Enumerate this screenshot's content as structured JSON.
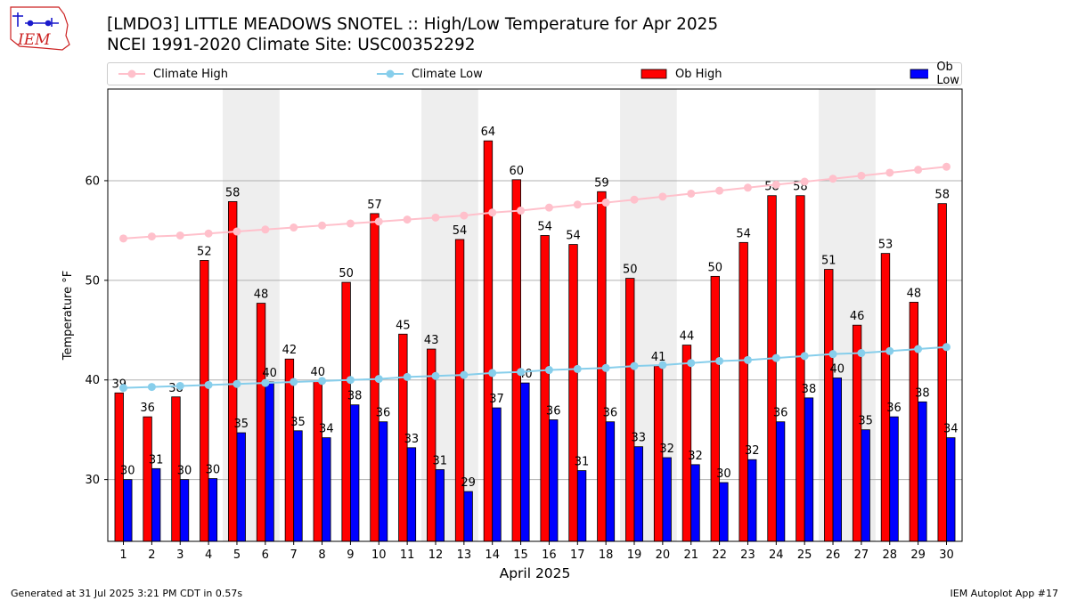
{
  "logo": {
    "text": "IEM",
    "color": "#cc2222"
  },
  "header": {
    "title": "[LMDO3] LITTLE MEADOWS SNOTEL :: High/Low Temperature for Apr 2025",
    "subtitle": "NCEI 1991-2020 Climate Site: USC00352292"
  },
  "footer": {
    "left": "Generated at 31 Jul 2025 3:21 PM CDT in 0.57s",
    "right": "IEM Autoplot App #17"
  },
  "legend": [
    {
      "label": "Climate High",
      "kind": "line",
      "color": "#ffc0cb"
    },
    {
      "label": "Climate Low",
      "kind": "line",
      "color": "#87ceeb"
    },
    {
      "label": "Ob High",
      "kind": "bar",
      "color": "#ff0000"
    },
    {
      "label": "Ob Low",
      "kind": "bar",
      "color": "#0000ff"
    }
  ],
  "chart_data": {
    "type": "bar",
    "xlabel": "April 2025",
    "ylabel": "Temperature °F",
    "ylim": [
      23.8,
      69.2
    ],
    "yticks": [
      30,
      40,
      50,
      60
    ],
    "grid": "horizontal",
    "legend_position": "top",
    "categories": [
      "1",
      "2",
      "3",
      "4",
      "5",
      "6",
      "7",
      "8",
      "9",
      "10",
      "11",
      "12",
      "13",
      "14",
      "15",
      "16",
      "17",
      "18",
      "19",
      "20",
      "21",
      "22",
      "23",
      "24",
      "25",
      "26",
      "27",
      "28",
      "29",
      "30"
    ],
    "weekend_shading": [
      [
        5,
        6
      ],
      [
        12,
        13
      ],
      [
        19,
        20
      ],
      [
        26,
        27
      ]
    ],
    "shade_color": "#eeeeee",
    "series": [
      {
        "name": "Ob High",
        "type": "bar",
        "color": "#ff0000",
        "values": [
          38.7,
          36.3,
          38.3,
          52.0,
          57.9,
          47.7,
          42.1,
          39.9,
          49.8,
          56.7,
          44.6,
          43.1,
          54.1,
          64.0,
          60.1,
          54.5,
          53.6,
          58.9,
          50.2,
          41.4,
          43.5,
          50.4,
          53.8,
          58.5,
          58.5,
          51.1,
          45.5,
          52.7,
          47.8,
          57.7
        ],
        "labels": [
          "39",
          "36",
          "38",
          "52",
          "58",
          "48",
          "42",
          "40",
          "50",
          "57",
          "45",
          "43",
          "54",
          "64",
          "60",
          "54",
          "54",
          "59",
          "50",
          "41",
          "44",
          "50",
          "54",
          "58",
          "58",
          "51",
          "46",
          "53",
          "48",
          "58"
        ]
      },
      {
        "name": "Ob Low",
        "type": "bar",
        "color": "#0000ff",
        "values": [
          30.0,
          31.1,
          30.0,
          30.1,
          34.7,
          39.8,
          34.9,
          34.2,
          37.5,
          35.8,
          33.2,
          31.0,
          28.8,
          37.2,
          39.7,
          36.0,
          30.9,
          35.8,
          33.3,
          32.2,
          31.5,
          29.7,
          32.0,
          35.8,
          38.2,
          40.2,
          35.0,
          36.3,
          37.8,
          34.2
        ],
        "labels": [
          "30",
          "31",
          "30",
          "30",
          "35",
          "40",
          "35",
          "34",
          "38",
          "36",
          "33",
          "31",
          "29",
          "37",
          "40",
          "36",
          "31",
          "36",
          "33",
          "32",
          "32",
          "30",
          "32",
          "36",
          "38",
          "40",
          "35",
          "36",
          "38",
          "34"
        ]
      },
      {
        "name": "Climate High",
        "type": "line",
        "color": "#ffc0cb",
        "values": [
          54.2,
          54.4,
          54.5,
          54.7,
          54.9,
          55.1,
          55.3,
          55.5,
          55.7,
          55.9,
          56.1,
          56.3,
          56.5,
          56.8,
          57.0,
          57.3,
          57.6,
          57.8,
          58.1,
          58.4,
          58.7,
          59.0,
          59.3,
          59.6,
          59.9,
          60.2,
          60.5,
          60.8,
          61.1,
          61.4
        ]
      },
      {
        "name": "Climate Low",
        "type": "line",
        "color": "#87ceeb",
        "values": [
          39.2,
          39.3,
          39.4,
          39.5,
          39.6,
          39.7,
          39.8,
          39.9,
          40.0,
          40.1,
          40.3,
          40.4,
          40.5,
          40.7,
          40.8,
          41.0,
          41.1,
          41.2,
          41.4,
          41.5,
          41.7,
          41.9,
          42.0,
          42.2,
          42.4,
          42.6,
          42.7,
          42.9,
          43.1,
          43.3
        ]
      }
    ]
  }
}
